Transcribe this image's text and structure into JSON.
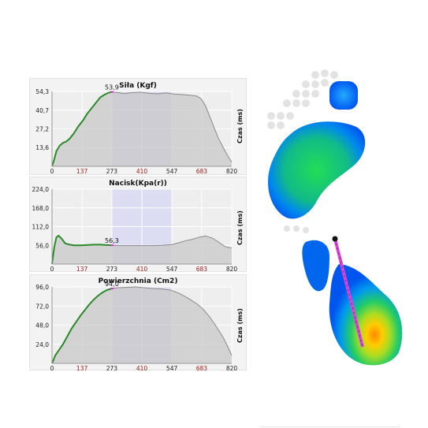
{
  "y_axis_unit_label": "Czas (ms)",
  "colors": {
    "loaded_line": "#2a8a2a",
    "remaining_line": "#8a8a8a",
    "fill": "#c8c8c8",
    "highlight_band": "#dcdcf2",
    "grid": "#ffffff",
    "tick_red": "#a02020",
    "marker": "#cc33cc",
    "cop_line": "#e040e0"
  },
  "x_ticks": [
    "0",
    "137",
    "273",
    "410",
    "547",
    "683",
    "820"
  ],
  "x_tick_colors": [
    "dark",
    "red",
    "dark",
    "red",
    "dark",
    "red",
    "dark"
  ],
  "chart_data": [
    {
      "type": "area",
      "title": "Siła (Kgf)",
      "ylabel": "Czas (ms)",
      "xlim": [
        0,
        820
      ],
      "ylim": [
        0,
        54.3
      ],
      "yticks": [
        "54,3",
        "40,7",
        "27,2",
        "13,6"
      ],
      "ytick_values": [
        54.3,
        40.7,
        27.2,
        13.6
      ],
      "highlight_range": [
        273,
        547
      ],
      "current_x": 273,
      "current_value_label": "53,9",
      "series": [
        {
          "x": [
            0,
            10,
            20,
            35,
            50,
            65,
            80,
            100,
            120,
            140,
            160,
            180,
            200,
            220,
            240,
            260,
            273,
            300,
            330,
            360,
            400,
            440,
            480,
            520,
            560,
            600,
            630,
            660,
            680,
            700,
            720,
            740,
            760,
            780,
            800,
            820
          ],
          "y": [
            0,
            5,
            11,
            15,
            17,
            18,
            20,
            24,
            29,
            33,
            38,
            42,
            46,
            50,
            52,
            53.5,
            53.9,
            53.5,
            52.7,
            53.4,
            53.8,
            53.0,
            52.6,
            53.2,
            52.4,
            52.0,
            51.5,
            51.0,
            49,
            44,
            36,
            28,
            20,
            14,
            8,
            3
          ]
        }
      ]
    },
    {
      "type": "area",
      "title": "Nacisk(Kpa(r))",
      "ylabel": "Czas (ms)",
      "xlim": [
        0,
        820
      ],
      "ylim": [
        0,
        224
      ],
      "yticks": [
        "224,0",
        "168,0",
        "112,0",
        "56,0"
      ],
      "ytick_values": [
        224,
        168,
        112,
        56
      ],
      "highlight_range": [
        273,
        547
      ],
      "current_x": 273,
      "current_value_label": "56,3",
      "series": [
        {
          "x": [
            0,
            10,
            20,
            30,
            45,
            60,
            80,
            100,
            130,
            160,
            190,
            220,
            250,
            273,
            300,
            350,
            400,
            450,
            500,
            547,
            580,
            610,
            640,
            670,
            700,
            730,
            760,
            790,
            820
          ],
          "y": [
            0,
            50,
            80,
            85,
            75,
            62,
            58,
            56,
            56,
            57,
            58,
            58,
            57,
            56.3,
            55,
            55,
            55,
            55,
            56,
            58,
            64,
            70,
            74,
            80,
            84,
            78,
            66,
            52,
            48
          ]
        }
      ]
    },
    {
      "type": "area",
      "title": "Powierzchnia (Cm2)",
      "ylabel": "Czas (ms)",
      "xlim": [
        0,
        820
      ],
      "ylim": [
        0,
        96
      ],
      "yticks": [
        "96,0",
        "72,0",
        "48,0",
        "24,0"
      ],
      "ytick_values": [
        96,
        72,
        48,
        24
      ],
      "highlight_range": [
        273,
        547
      ],
      "current_x": 273,
      "current_value_label": "94,0",
      "series": [
        {
          "x": [
            0,
            15,
            30,
            50,
            70,
            90,
            110,
            130,
            150,
            170,
            190,
            210,
            230,
            250,
            273,
            300,
            340,
            380,
            420,
            460,
            500,
            540,
            580,
            620,
            660,
            690,
            720,
            750,
            780,
            800,
            820
          ],
          "y": [
            0,
            10,
            16,
            24,
            34,
            44,
            52,
            60,
            67,
            74,
            80,
            85,
            89,
            92,
            94,
            95,
            95.5,
            96,
            95,
            94,
            93.5,
            92,
            88,
            82,
            75,
            68,
            58,
            46,
            33,
            22,
            10
          ]
        }
      ]
    }
  ]
}
